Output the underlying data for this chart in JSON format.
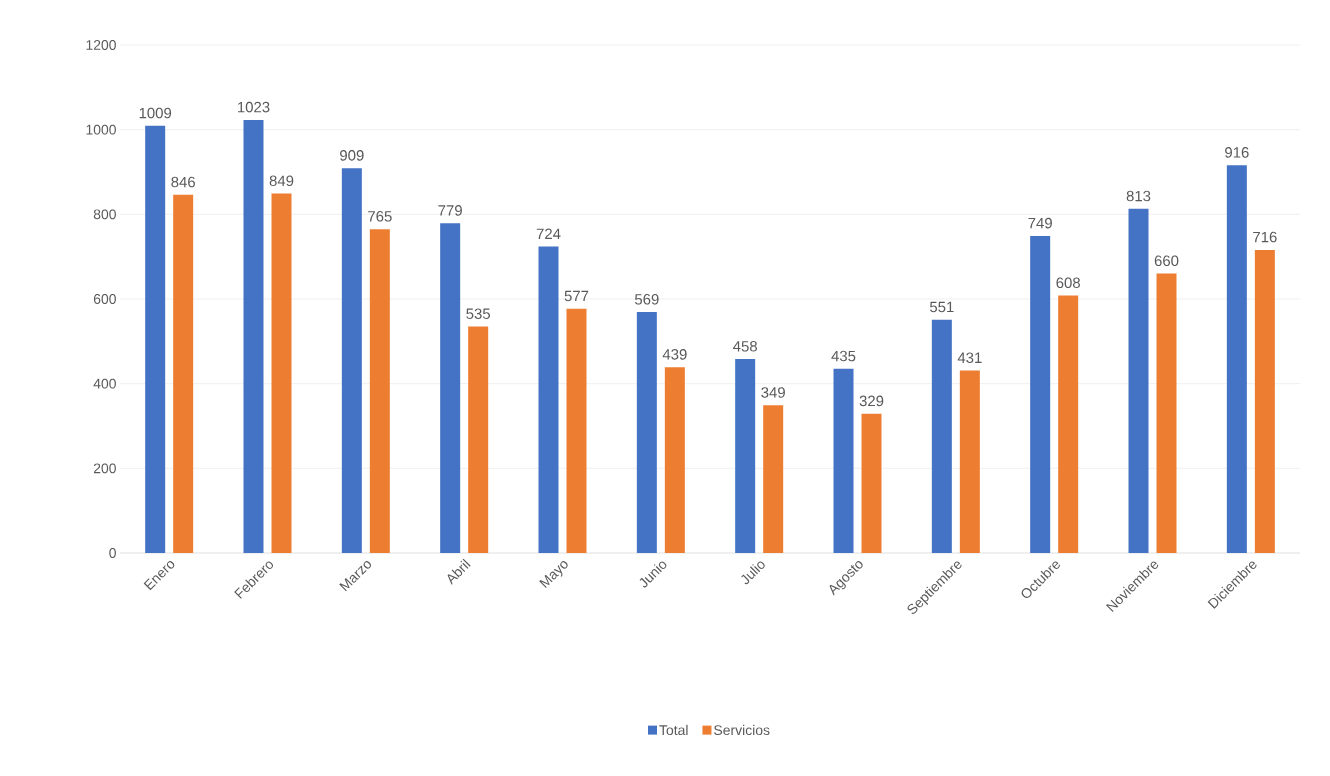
{
  "chart_data": {
    "type": "bar",
    "categories": [
      "Enero",
      "Febrero",
      "Marzo",
      "Abril",
      "Mayo",
      "Junio",
      "Julio",
      "Agosto",
      "Septiembre",
      "Octubre",
      "Noviembre",
      "Diciembre"
    ],
    "series": [
      {
        "name": "Total",
        "color": "#4472c4",
        "values": [
          1009,
          1023,
          909,
          779,
          724,
          569,
          458,
          435,
          551,
          749,
          813,
          916
        ]
      },
      {
        "name": "Servicios",
        "color": "#ed7d31",
        "values": [
          846,
          849,
          765,
          535,
          577,
          439,
          349,
          329,
          431,
          608,
          660,
          716
        ]
      }
    ],
    "ylim": [
      0,
      1200
    ],
    "yticks": [
      0,
      200,
      400,
      600,
      800,
      1000,
      1200
    ],
    "grid": "y",
    "legend": "bottom",
    "data_labels": true
  }
}
